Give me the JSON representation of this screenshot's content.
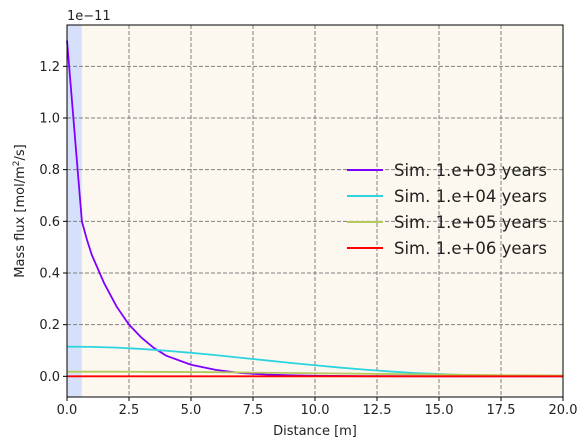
{
  "chart_data": {
    "type": "line",
    "xlabel": "Distance [m]",
    "ylabel": "Mass flux [mol/m²/s]",
    "ylabel_parts": {
      "pre": "Mass flux [mol/m",
      "sup": "2",
      "post": "/s]"
    },
    "offset_label": "1e−11",
    "xlim": [
      0,
      20
    ],
    "ylim": [
      -0.08,
      1.36
    ],
    "y_scale_note": "values in units of 1e-11",
    "x_ticks": [
      0,
      2.5,
      5,
      7.5,
      10,
      12.5,
      15,
      17.5,
      20
    ],
    "x_tick_labels": [
      "0.0",
      "2.5",
      "5.0",
      "7.5",
      "10.0",
      "12.5",
      "15.0",
      "17.5",
      "20.0"
    ],
    "y_ticks": [
      0,
      0.2,
      0.4,
      0.6,
      0.8,
      1.0,
      1.2
    ],
    "y_tick_labels": [
      "0.0",
      "0.2",
      "0.4",
      "0.6",
      "0.8",
      "1.0",
      "1.2"
    ],
    "grid": true,
    "legend_position": "center-right",
    "background_regions": [
      {
        "x_start": 0,
        "x_end": 0.6,
        "color": "#d6e0fa"
      },
      {
        "x_start": 0.6,
        "x_end": 20,
        "color": "#fdf8ef"
      }
    ],
    "series": [
      {
        "name": "Sim. 1.e+03 years",
        "color": "#7f00ff",
        "x": [
          0,
          0.3,
          0.6,
          0.8,
          1.0,
          1.5,
          2.0,
          2.5,
          3.0,
          3.5,
          4.0,
          5.0,
          6.0,
          7.0,
          8.0,
          9.0,
          10.0,
          12.0,
          15.0,
          20.0
        ],
        "y": [
          1.3,
          0.95,
          0.6,
          0.53,
          0.47,
          0.36,
          0.27,
          0.2,
          0.15,
          0.11,
          0.08,
          0.045,
          0.025,
          0.013,
          0.007,
          0.004,
          0.002,
          0.0006,
          0.0001,
          0.0
        ]
      },
      {
        "name": "Sim. 1.e+04 years",
        "color": "#2bd4de",
        "x": [
          0,
          1,
          2,
          3,
          4,
          5,
          6,
          7,
          8,
          9,
          10,
          11,
          12,
          13,
          14,
          15,
          16,
          17,
          18,
          19,
          20
        ],
        "y": [
          0.115,
          0.114,
          0.111,
          0.106,
          0.099,
          0.091,
          0.082,
          0.072,
          0.062,
          0.052,
          0.043,
          0.034,
          0.026,
          0.019,
          0.013,
          0.009,
          0.005,
          0.003,
          0.0015,
          0.0008,
          0.0004
        ]
      },
      {
        "name": "Sim. 1.e+05 years",
        "color": "#b5c85a",
        "x": [
          0,
          2,
          4,
          6,
          8,
          10,
          12,
          14,
          16,
          18,
          20
        ],
        "y": [
          0.018,
          0.018,
          0.017,
          0.016,
          0.014,
          0.012,
          0.01,
          0.008,
          0.006,
          0.004,
          0.003
        ]
      },
      {
        "name": "Sim. 1.e+06 years",
        "color": "#ff0000",
        "x": [
          0,
          20
        ],
        "y": [
          0.0,
          0.0
        ]
      }
    ]
  }
}
